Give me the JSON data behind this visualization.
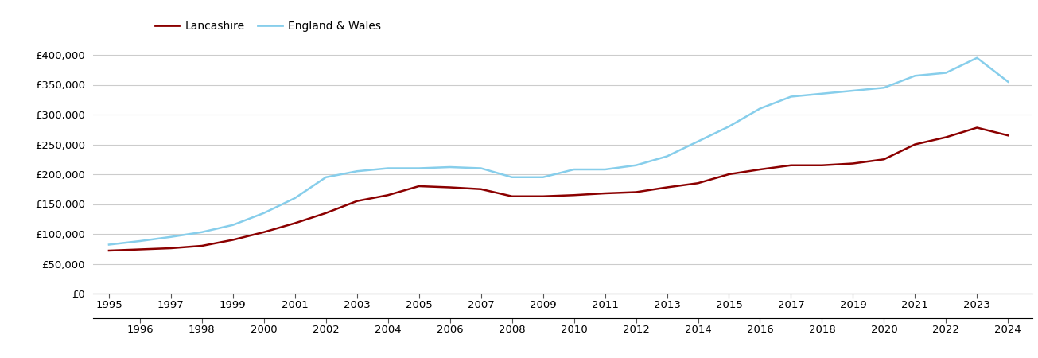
{
  "lancashire": {
    "years": [
      1995,
      1996,
      1997,
      1998,
      1999,
      2000,
      2001,
      2002,
      2003,
      2004,
      2005,
      2006,
      2007,
      2008,
      2009,
      2010,
      2011,
      2012,
      2013,
      2014,
      2015,
      2016,
      2017,
      2018,
      2019,
      2020,
      2021,
      2022,
      2023,
      2024
    ],
    "values": [
      72000,
      74000,
      76000,
      80000,
      90000,
      103000,
      118000,
      135000,
      155000,
      165000,
      180000,
      178000,
      175000,
      163000,
      163000,
      165000,
      168000,
      170000,
      178000,
      185000,
      200000,
      208000,
      215000,
      215000,
      218000,
      225000,
      250000,
      262000,
      278000,
      265000
    ]
  },
  "england_wales": {
    "years": [
      1995,
      1996,
      1997,
      1998,
      1999,
      2000,
      2001,
      2002,
      2003,
      2004,
      2005,
      2006,
      2007,
      2008,
      2009,
      2010,
      2011,
      2012,
      2013,
      2014,
      2015,
      2016,
      2017,
      2018,
      2019,
      2020,
      2021,
      2022,
      2023,
      2024
    ],
    "values": [
      82000,
      88000,
      95000,
      103000,
      115000,
      135000,
      160000,
      195000,
      205000,
      210000,
      210000,
      212000,
      210000,
      195000,
      195000,
      208000,
      208000,
      215000,
      230000,
      255000,
      280000,
      310000,
      330000,
      335000,
      340000,
      345000,
      365000,
      370000,
      395000,
      355000
    ]
  },
  "lancashire_color": "#8B0000",
  "england_wales_color": "#87CEEB",
  "background_color": "#ffffff",
  "grid_color": "#cccccc",
  "ylim": [
    0,
    420000
  ],
  "yticks": [
    0,
    50000,
    100000,
    150000,
    200000,
    250000,
    300000,
    350000,
    400000
  ],
  "xlim_start": 1994.5,
  "xlim_end": 2024.8,
  "legend_labels": [
    "Lancashire",
    "England & Wales"
  ],
  "line_width": 1.8
}
